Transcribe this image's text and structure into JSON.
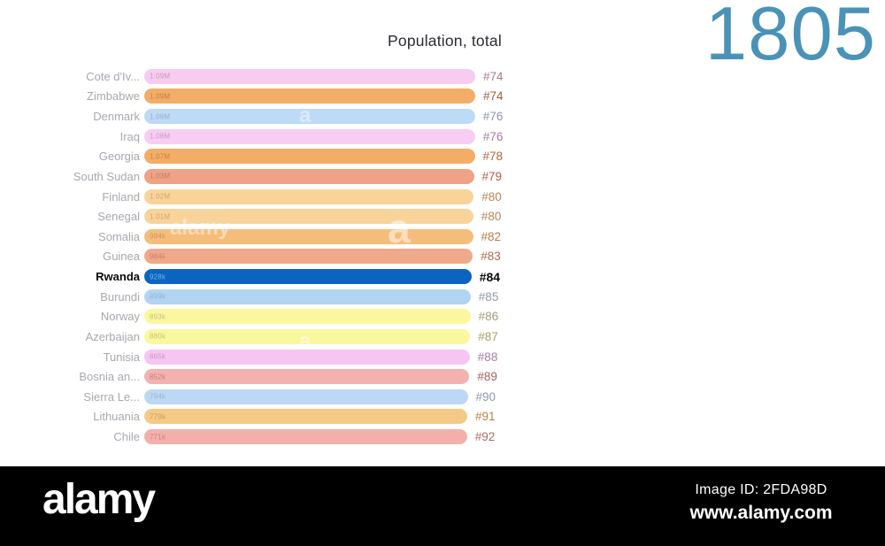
{
  "header": {
    "title": "Population, total",
    "year": "1805",
    "year_color": "#4a92b8"
  },
  "watermark": {
    "logo_text": "alamy",
    "image_id": "Image ID: 2FDA98D",
    "site_url": "www.alamy.com",
    "overlay_letters": [
      "a",
      "alamy",
      "a",
      "a"
    ]
  },
  "chart_data": {
    "type": "bar",
    "orientation": "horizontal",
    "title": "Population, total",
    "scale": "log",
    "value_unit": "people",
    "value_range_visible": [
      771000,
      1090000
    ],
    "rank_range_visible": [
      "#74",
      "#92"
    ],
    "rows": [
      {
        "country": "Cote d'Iv...",
        "value": 1090000,
        "value_label": "1.09M",
        "rank": "#74",
        "bar_color": "#f8cbf1",
        "rank_color": "#ae7b85",
        "highlight": false
      },
      {
        "country": "Zimbabwe",
        "value": 1090000,
        "value_label": "1.09M",
        "rank": "#74",
        "bar_color": "#f3ad66",
        "rank_color": "#a55e3b",
        "highlight": false
      },
      {
        "country": "Denmark",
        "value": 1080000,
        "value_label": "1.08M",
        "rank": "#76",
        "bar_color": "#bddaf7",
        "rank_color": "#8c94a5",
        "highlight": false
      },
      {
        "country": "Iraq",
        "value": 1080000,
        "value_label": "1.08M",
        "rank": "#76",
        "bar_color": "#f7cdf4",
        "rank_color": "#a87b9f",
        "highlight": false
      },
      {
        "country": "Georgia",
        "value": 1070000,
        "value_label": "1.07M",
        "rank": "#78",
        "bar_color": "#f3ad66",
        "rank_color": "#aa6840",
        "highlight": false
      },
      {
        "country": "South Sudan",
        "value": 1030000,
        "value_label": "1.03M",
        "rank": "#79",
        "bar_color": "#efa286",
        "rank_color": "#b05f46",
        "highlight": false
      },
      {
        "country": "Finland",
        "value": 1020000,
        "value_label": "1.02M",
        "rank": "#80",
        "bar_color": "#f8d49b",
        "rank_color": "#af8a58",
        "highlight": false
      },
      {
        "country": "Senegal",
        "value": 1010000,
        "value_label": "1.01M",
        "rank": "#80",
        "bar_color": "#f8d49b",
        "rank_color": "#af8a58",
        "highlight": false
      },
      {
        "country": "Somalia",
        "value": 994000,
        "value_label": "994k",
        "rank": "#82",
        "bar_color": "#f5bd7c",
        "rank_color": "#b27c4d",
        "highlight": false
      },
      {
        "country": "Guinea",
        "value": 984000,
        "value_label": "984k",
        "rank": "#83",
        "bar_color": "#f0a88b",
        "rank_color": "#b26851",
        "highlight": false
      },
      {
        "country": "Rwanda",
        "value": 928000,
        "value_label": "928k",
        "rank": "#84",
        "bar_color": "#0b64bf",
        "rank_color": "#0a0a0a",
        "value_color": "#7fb2e3",
        "highlight": true
      },
      {
        "country": "Burundi",
        "value": 899000,
        "value_label": "899k",
        "rank": "#85",
        "bar_color": "#b2d4f3",
        "rank_color": "#9099a8",
        "highlight": false
      },
      {
        "country": "Norway",
        "value": 893000,
        "value_label": "893k",
        "rank": "#86",
        "bar_color": "#faf89f",
        "rank_color": "#a29c7e",
        "highlight": false
      },
      {
        "country": "Azerbaijan",
        "value": 880000,
        "value_label": "880k",
        "rank": "#87",
        "bar_color": "#faf89f",
        "rank_color": "#a6a065",
        "highlight": false
      },
      {
        "country": "Tunisia",
        "value": 865000,
        "value_label": "865k",
        "rank": "#88",
        "bar_color": "#f7c5f1",
        "rank_color": "#ab7aa2",
        "highlight": false
      },
      {
        "country": "Bosnia an...",
        "value": 852000,
        "value_label": "852k",
        "rank": "#89",
        "bar_color": "#f3b2b0",
        "rank_color": "#a95f5b",
        "highlight": false
      },
      {
        "country": "Sierra Le...",
        "value": 794000,
        "value_label": "794k",
        "rank": "#90",
        "bar_color": "#bcd8f5",
        "rank_color": "#8e9bad",
        "highlight": false
      },
      {
        "country": "Lithuania",
        "value": 779000,
        "value_label": "779k",
        "rank": "#91",
        "bar_color": "#f5ca86",
        "rank_color": "#af8449",
        "highlight": false
      },
      {
        "country": "Chile",
        "value": 771000,
        "value_label": "771k",
        "rank": "#92",
        "bar_color": "#f3b0aa",
        "rank_color": "#ae6a64",
        "highlight": false
      }
    ]
  }
}
